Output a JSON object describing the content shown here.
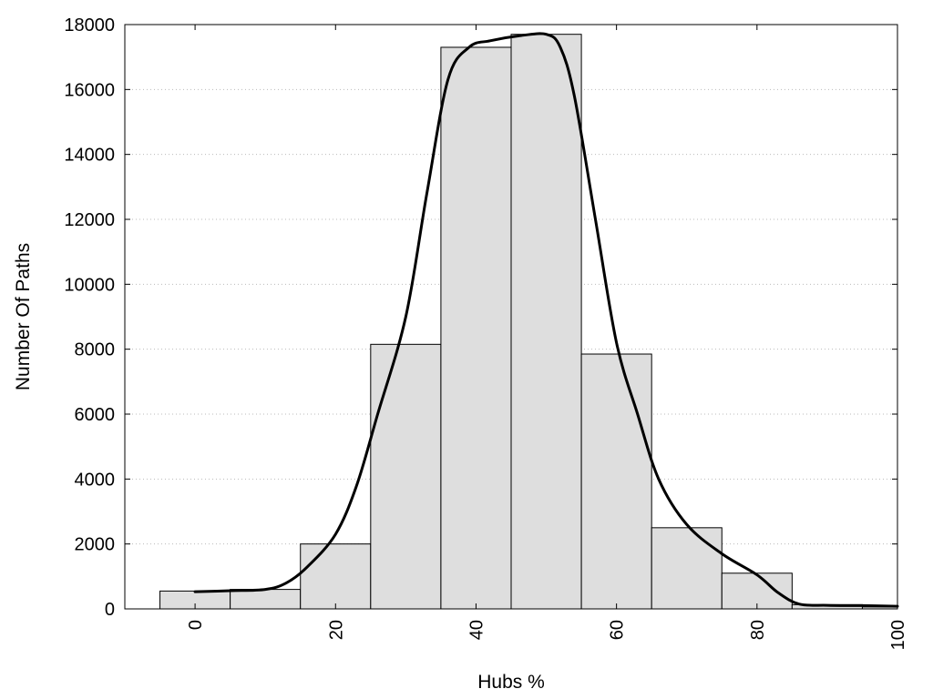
{
  "chart_data": {
    "type": "bar",
    "title": "",
    "xlabel": "Hubs %",
    "ylabel": "Number Of Paths",
    "xlim": [
      -10,
      100
    ],
    "ylim": [
      0,
      18000
    ],
    "grid": true,
    "legend": "none",
    "bar_width": 10,
    "bars": [
      {
        "x": 0,
        "y": 550
      },
      {
        "x": 10,
        "y": 600
      },
      {
        "x": 20,
        "y": 2000
      },
      {
        "x": 30,
        "y": 8150
      },
      {
        "x": 40,
        "y": 17300
      },
      {
        "x": 50,
        "y": 17700
      },
      {
        "x": 60,
        "y": 7850
      },
      {
        "x": 70,
        "y": 2500
      },
      {
        "x": 80,
        "y": 1100
      },
      {
        "x": 90,
        "y": 130
      },
      {
        "x": 100,
        "y": 60
      }
    ],
    "curve": [
      [
        0,
        530
      ],
      [
        5,
        560
      ],
      [
        10,
        600
      ],
      [
        13,
        800
      ],
      [
        16,
        1300
      ],
      [
        20,
        2300
      ],
      [
        23,
        3800
      ],
      [
        26,
        6000
      ],
      [
        30,
        9000
      ],
      [
        33,
        12800
      ],
      [
        36,
        16300
      ],
      [
        39,
        17300
      ],
      [
        42,
        17500
      ],
      [
        46,
        17650
      ],
      [
        50,
        17700
      ],
      [
        52,
        17300
      ],
      [
        54,
        15800
      ],
      [
        57,
        12000
      ],
      [
        60,
        8200
      ],
      [
        63,
        6000
      ],
      [
        66,
        4000
      ],
      [
        70,
        2600
      ],
      [
        75,
        1700
      ],
      [
        80,
        1050
      ],
      [
        83,
        500
      ],
      [
        86,
        150
      ],
      [
        90,
        110
      ],
      [
        95,
        100
      ],
      [
        100,
        80
      ]
    ],
    "xticks": [
      0,
      20,
      40,
      60,
      80,
      100
    ],
    "yticks": [
      0,
      2000,
      4000,
      6000,
      8000,
      10000,
      12000,
      14000,
      16000,
      18000
    ],
    "colors": {
      "bar_fill": "#dedede",
      "bar_stroke": "#000000",
      "curve": "#000000",
      "grid": "#bbbbbb"
    }
  }
}
